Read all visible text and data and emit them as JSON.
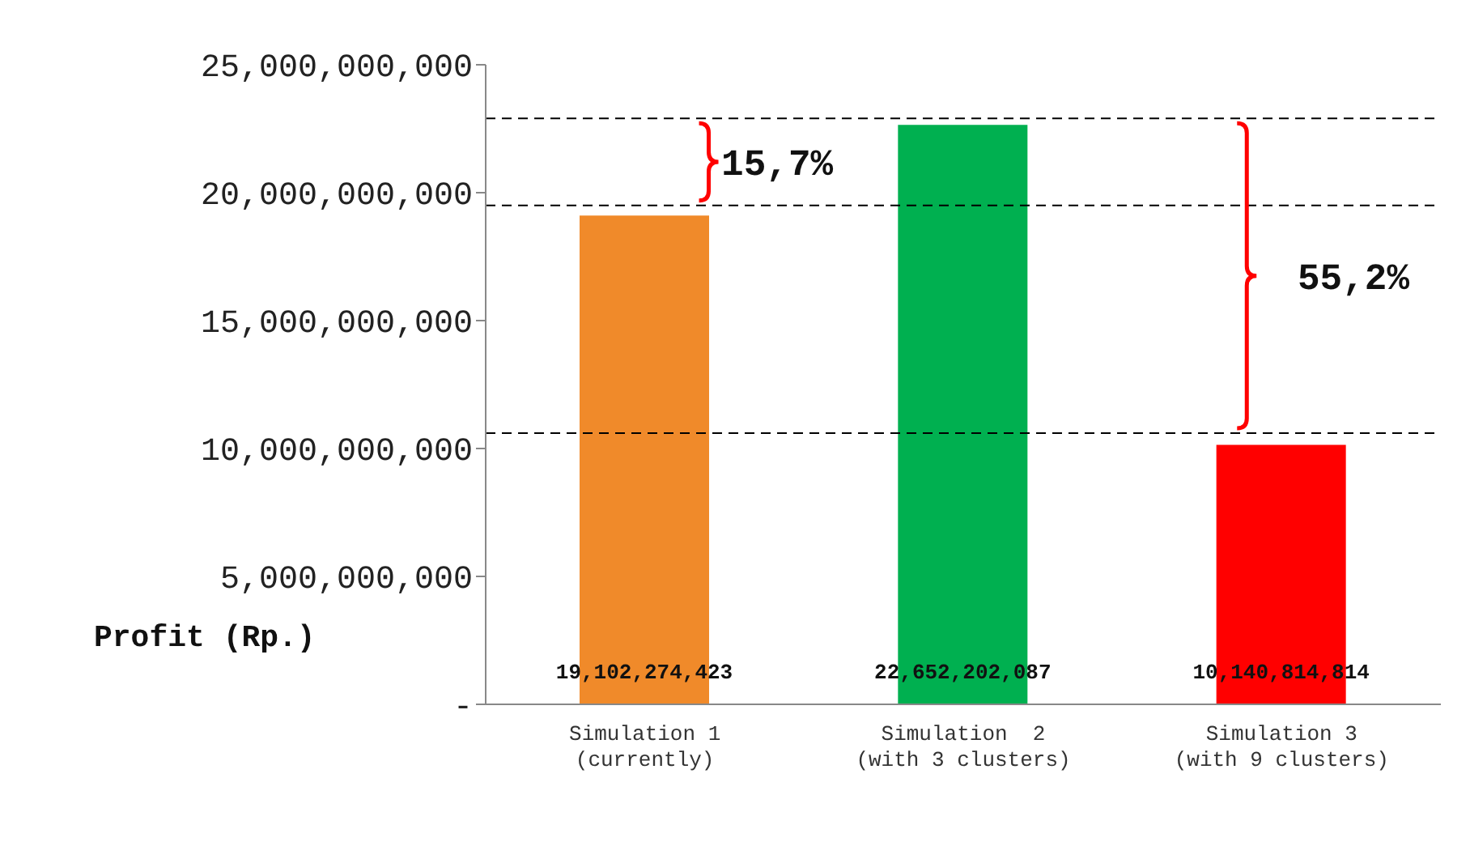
{
  "chart_data": {
    "type": "bar",
    "ylabel": "Profit (Rp.)",
    "categories": [
      "Simulation 1\n(currently)",
      "Simulation  2\n(with 3 clusters)",
      "Simulation 3\n(with 9 clusters)"
    ],
    "values": [
      19102274423,
      22652202087,
      10140814814
    ],
    "colors": [
      "#f08a2a",
      "#00b050",
      "#ff0000"
    ],
    "value_labels": [
      "19,102,274,423",
      "22,652,202,087",
      "10,140,814,814"
    ],
    "ylim": [
      0,
      25000000000
    ],
    "yticks": [
      {
        "value": 0,
        "label": "-"
      },
      {
        "value": 5000000000,
        "label": "5,000,000,000"
      },
      {
        "value": 10000000000,
        "label": "10,000,000,000"
      },
      {
        "value": 15000000000,
        "label": "15,000,000,000"
      },
      {
        "value": 20000000000,
        "label": "20,000,000,000"
      },
      {
        "value": 25000000000,
        "label": "25,000,000,000"
      }
    ],
    "ref_lines": [
      {
        "axis": "y",
        "value": 22900000000,
        "color": "#000000",
        "line_style": "dashed"
      },
      {
        "axis": "y",
        "value": 19500000000,
        "color": "#000000",
        "line_style": "dashed"
      },
      {
        "axis": "y",
        "value": 10600000000,
        "color": "#000000",
        "line_style": "dashed"
      }
    ],
    "annotations": [
      "15,7%",
      "55,2%"
    ]
  }
}
